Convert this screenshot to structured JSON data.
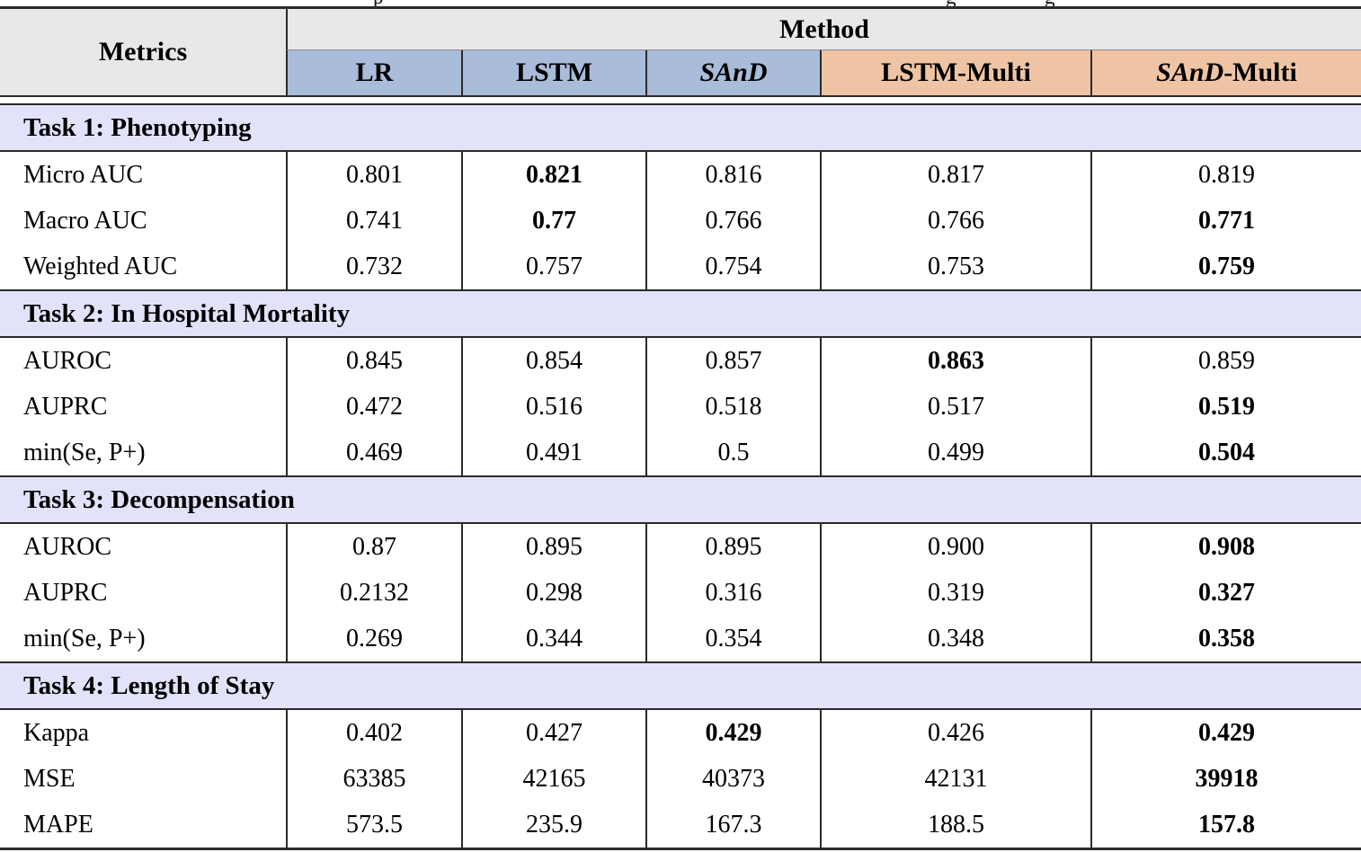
{
  "caption_fragments": [
    "p",
    "g",
    "g"
  ],
  "colors": {
    "header_bg": "#e8e8e8",
    "single_bg": "#a9bcd9",
    "multi_bg": "#eec4a4",
    "task_bg": "#e2e3fa",
    "rule": "#2a2a2a"
  },
  "table": {
    "header": {
      "metrics_label": "Metrics",
      "method_label": "Method",
      "methods": [
        {
          "bg": "blue",
          "parts": [
            {
              "text": "LR",
              "italic": false
            }
          ]
        },
        {
          "bg": "blue",
          "parts": [
            {
              "text": "LSTM",
              "italic": false
            }
          ]
        },
        {
          "bg": "blue",
          "parts": [
            {
              "text": "SAnD",
              "italic": true
            }
          ]
        },
        {
          "bg": "peach",
          "parts": [
            {
              "text": "LSTM-Multi",
              "italic": false
            }
          ]
        },
        {
          "bg": "peach",
          "parts": [
            {
              "text": "SAnD",
              "italic": true
            },
            {
              "text": "-Multi",
              "italic": false
            }
          ]
        }
      ]
    },
    "sections": [
      {
        "title": "Task 1: Phenotyping",
        "rows": [
          {
            "metric": "Micro AUC",
            "values": [
              "0.801",
              "0.821",
              "0.816",
              "0.817",
              "0.819"
            ],
            "bold": [
              false,
              true,
              false,
              false,
              false
            ]
          },
          {
            "metric": "Macro AUC",
            "values": [
              "0.741",
              "0.77",
              "0.766",
              "0.766",
              "0.771"
            ],
            "bold": [
              false,
              true,
              false,
              false,
              true
            ]
          },
          {
            "metric": "Weighted AUC",
            "values": [
              "0.732",
              "0.757",
              "0.754",
              "0.753",
              "0.759"
            ],
            "bold": [
              false,
              false,
              false,
              false,
              true
            ]
          }
        ]
      },
      {
        "title": "Task 2: In Hospital Mortality",
        "rows": [
          {
            "metric": "AUROC",
            "values": [
              "0.845",
              "0.854",
              "0.857",
              "0.863",
              "0.859"
            ],
            "bold": [
              false,
              false,
              false,
              true,
              false
            ]
          },
          {
            "metric": "AUPRC",
            "values": [
              "0.472",
              "0.516",
              "0.518",
              "0.517",
              "0.519"
            ],
            "bold": [
              false,
              false,
              false,
              false,
              true
            ]
          },
          {
            "metric": "min(Se, P+)",
            "values": [
              "0.469",
              "0.491",
              "0.5",
              "0.499",
              "0.504"
            ],
            "bold": [
              false,
              false,
              false,
              false,
              true
            ]
          }
        ]
      },
      {
        "title": "Task 3: Decompensation",
        "rows": [
          {
            "metric": "AUROC",
            "values": [
              "0.87",
              "0.895",
              "0.895",
              "0.900",
              "0.908"
            ],
            "bold": [
              false,
              false,
              false,
              false,
              true
            ]
          },
          {
            "metric": "AUPRC",
            "values": [
              "0.2132",
              "0.298",
              "0.316",
              "0.319",
              "0.327"
            ],
            "bold": [
              false,
              false,
              false,
              false,
              true
            ]
          },
          {
            "metric": "min(Se, P+)",
            "values": [
              "0.269",
              "0.344",
              "0.354",
              "0.348",
              "0.358"
            ],
            "bold": [
              false,
              false,
              false,
              false,
              true
            ]
          }
        ]
      },
      {
        "title": "Task 4: Length of Stay",
        "rows": [
          {
            "metric": "Kappa",
            "values": [
              "0.402",
              "0.427",
              "0.429",
              "0.426",
              "0.429"
            ],
            "bold": [
              false,
              false,
              true,
              false,
              true
            ]
          },
          {
            "metric": "MSE",
            "values": [
              "63385",
              "42165",
              "40373",
              "42131",
              "39918"
            ],
            "bold": [
              false,
              false,
              false,
              false,
              true
            ]
          },
          {
            "metric": "MAPE",
            "values": [
              "573.5",
              "235.9",
              "167.3",
              "188.5",
              "157.8"
            ],
            "bold": [
              false,
              false,
              false,
              false,
              true
            ]
          }
        ]
      }
    ]
  }
}
